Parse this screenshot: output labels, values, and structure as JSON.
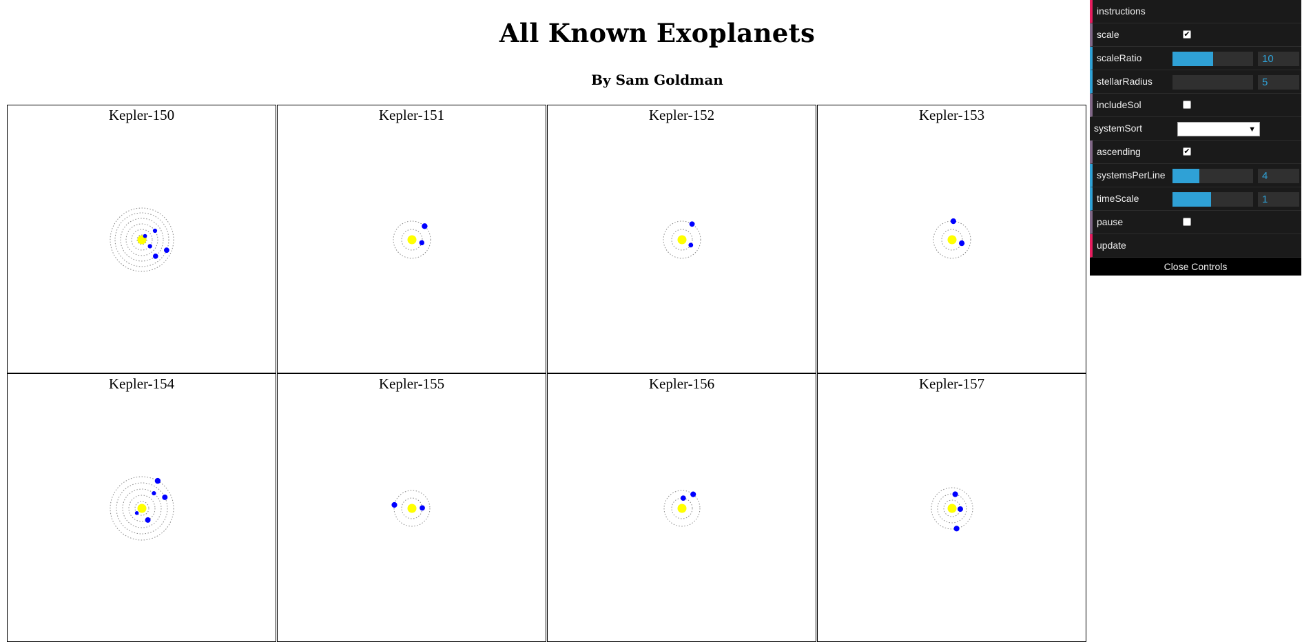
{
  "title": "All Known Exoplanets",
  "subtitle": "By Sam Goldman",
  "colors": {
    "star": "#ffff00",
    "planet": "#0000ff",
    "orbit": "#888888",
    "accent_number": "#2fa1d6",
    "accent_function": "#e61d5f",
    "accent_boolean": "#806787"
  },
  "systems": [
    {
      "name": "Kepler-150",
      "orbit_count": 6,
      "planet_count": 5
    },
    {
      "name": "Kepler-151",
      "orbit_count": 2,
      "planet_count": 2
    },
    {
      "name": "Kepler-152",
      "orbit_count": 2,
      "planet_count": 2
    },
    {
      "name": "Kepler-153",
      "orbit_count": 2,
      "planet_count": 2
    },
    {
      "name": "Kepler-154",
      "orbit_count": 5,
      "planet_count": 5
    },
    {
      "name": "Kepler-155",
      "orbit_count": 2,
      "planet_count": 2
    },
    {
      "name": "Kepler-156",
      "orbit_count": 2,
      "planet_count": 2
    },
    {
      "name": "Kepler-157",
      "orbit_count": 3,
      "planet_count": 3
    }
  ],
  "controls": {
    "instructions_label": "instructions",
    "scale": {
      "label": "scale",
      "checked": true
    },
    "scaleRatio": {
      "label": "scaleRatio",
      "value": "10",
      "fill_fraction": 0.5
    },
    "stellarRadius": {
      "label": "stellarRadius",
      "value": "5",
      "fill_fraction": 0
    },
    "includeSol": {
      "label": "includeSol",
      "checked": false
    },
    "systemSort": {
      "label": "systemSort",
      "value": ""
    },
    "ascending": {
      "label": "ascending",
      "checked": true
    },
    "systemsPerLine": {
      "label": "systemsPerLine",
      "value": "4",
      "fill_fraction": 0.33
    },
    "timeScale": {
      "label": "timeScale",
      "value": "1",
      "fill_fraction": 0.48
    },
    "pause": {
      "label": "pause",
      "checked": false
    },
    "update_label": "update",
    "close_label": "Close Controls"
  },
  "icons": {
    "checkmark": "check-icon",
    "dropdown": "triangle-down-icon"
  }
}
